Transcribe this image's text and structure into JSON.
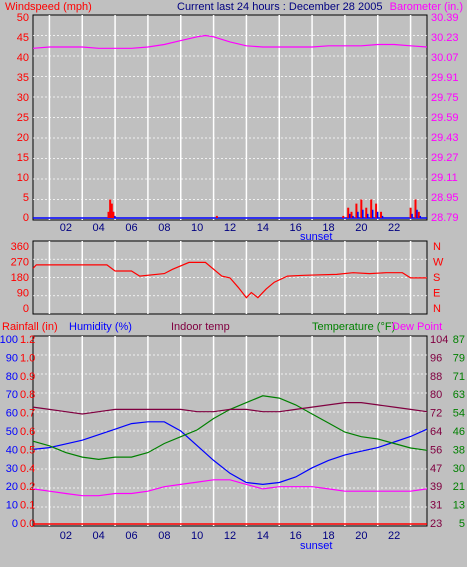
{
  "colors": {
    "panel_bg": "#c0c0c0",
    "red": "#ff0000",
    "blue": "#0000ff",
    "magenta": "#ff00ff",
    "green": "#008000",
    "maroon": "#800040",
    "navy": "#000080"
  },
  "chart_data": [
    {
      "type": "line",
      "title": "Current last 24 hours : December 28 2005",
      "left_axis_label": "Windspeed (mph)",
      "right_axis_label": "Barometer (in.)",
      "x_tick_labels": [
        "02",
        "04",
        "06",
        "08",
        "10",
        "12",
        "14",
        "16",
        "18",
        "20",
        "22"
      ],
      "x_extra_label": "sunset",
      "left_ticks": [
        "0",
        "5",
        "10",
        "15",
        "20",
        "25",
        "30",
        "35",
        "40",
        "45",
        "50"
      ],
      "right_ticks": [
        "28.79",
        "28.95",
        "29.11",
        "29.27",
        "29.43",
        "29.59",
        "29.75",
        "29.91",
        "30.07",
        "30.23",
        "30.39"
      ],
      "ylim_left": [
        0,
        50
      ],
      "ylim_right": [
        28.79,
        30.39
      ],
      "x_range_hours": [
        0,
        24
      ],
      "grid": true,
      "series": [
        {
          "name": "Barometer (in.)",
          "axis": "right",
          "x": [
            0,
            1,
            2,
            3,
            4,
            5,
            6,
            7,
            8,
            9,
            10,
            10.5,
            11,
            12,
            13,
            14,
            15,
            16,
            17,
            18,
            19,
            20,
            21,
            22,
            23,
            24
          ],
          "y": [
            30.13,
            30.14,
            30.14,
            30.14,
            30.13,
            30.13,
            30.13,
            30.14,
            30.16,
            30.19,
            30.22,
            30.23,
            30.22,
            30.18,
            30.15,
            30.14,
            30.14,
            30.14,
            30.14,
            30.15,
            30.15,
            30.15,
            30.16,
            30.16,
            30.15,
            30.14
          ]
        },
        {
          "name": "Windspeed (mph)",
          "axis": "left",
          "type": "bar",
          "x": [
            4.6,
            4.7,
            4.8,
            4.9,
            11.2,
            18.9,
            19.2,
            19.4,
            19.7,
            20.0,
            20.3,
            20.6,
            20.9,
            21.2,
            23.0,
            23.3,
            23.5
          ],
          "y": [
            2,
            5,
            4,
            2,
            1,
            1,
            3,
            2,
            4,
            5,
            3,
            5,
            4,
            2,
            3,
            5,
            2
          ]
        }
      ]
    },
    {
      "type": "line",
      "left_ticks": [
        "0",
        "90",
        "180",
        "270",
        "360"
      ],
      "right_ticks": [
        "N",
        "E",
        "S",
        "W",
        "N"
      ],
      "ylim": [
        0,
        360
      ],
      "x_range_hours": [
        0,
        24
      ],
      "grid": true,
      "series": [
        {
          "name": "Wind direction",
          "x": [
            0,
            0.2,
            4.5,
            5,
            6,
            6.5,
            8,
            8.5,
            9.5,
            10.5,
            11.5,
            12,
            12.5,
            13,
            13.3,
            13.7,
            14.2,
            14.7,
            15.5,
            16.5,
            18.5,
            19.5,
            20.5,
            21.5,
            22.5,
            23,
            24
          ],
          "y": [
            230,
            250,
            250,
            215,
            215,
            185,
            200,
            225,
            265,
            265,
            185,
            175,
            120,
            60,
            90,
            60,
            110,
            150,
            185,
            190,
            195,
            205,
            200,
            205,
            205,
            175,
            175
          ]
        }
      ]
    },
    {
      "type": "line",
      "left_axis_labels": [
        "Rainfall (in)",
        "Humidity (%)"
      ],
      "center_label": "Indoor temp",
      "right_axis_labels": [
        "Temperature (°F)",
        "Dew Point"
      ],
      "humidity_ticks": [
        "0",
        "10",
        "20",
        "30",
        "40",
        "50",
        "60",
        "70",
        "80",
        "90",
        "100"
      ],
      "rainfall_ticks": [
        "0.0",
        "0.1",
        "0.2",
        "0.4",
        "0.5",
        "0.6",
        "0.7",
        "0.8",
        "0.9",
        "1.0",
        "1.2"
      ],
      "temperature_ticks": [
        "23",
        "31",
        "39",
        "47",
        "56",
        "64",
        "72",
        "80",
        "88",
        "96",
        "104"
      ],
      "dewpoint_ticks": [
        "5",
        "13",
        "21",
        "30",
        "38",
        "46",
        "54",
        "63",
        "71",
        "79",
        "87"
      ],
      "x_tick_labels": [
        "02",
        "04",
        "06",
        "08",
        "10",
        "12",
        "14",
        "16",
        "18",
        "20",
        "22"
      ],
      "x_extra_label": "sunset",
      "ylim_humidity": [
        0,
        100
      ],
      "ylim_temperature": [
        23,
        104
      ],
      "x_range_hours": [
        0,
        24
      ],
      "grid": true,
      "series": [
        {
          "name": "Humidity (%)",
          "axis": "humidity",
          "x": [
            0,
            1,
            2,
            3,
            4,
            5,
            6,
            7,
            8,
            9,
            10,
            11,
            12,
            13,
            14,
            15,
            16,
            17,
            18,
            19,
            20,
            21,
            22,
            23,
            24
          ],
          "y": [
            40,
            41,
            43,
            45,
            48,
            51,
            54,
            55,
            55,
            50,
            42,
            34,
            27,
            22,
            21,
            22,
            25,
            30,
            34,
            37,
            39,
            41,
            44,
            47,
            51
          ]
        },
        {
          "name": "Temperature (°F)",
          "axis": "temperature",
          "x": [
            0,
            1,
            2,
            3,
            4,
            5,
            6,
            7,
            8,
            9,
            10,
            11,
            12,
            13,
            14,
            15,
            16,
            17,
            18,
            19,
            20,
            21,
            22,
            23,
            24
          ],
          "y": [
            59,
            57,
            54,
            52,
            51,
            52,
            52,
            54,
            58,
            61,
            64,
            69,
            73,
            76,
            79,
            78,
            75,
            71,
            67,
            63,
            61,
            60,
            58,
            56,
            55
          ]
        },
        {
          "name": "Indoor temp",
          "axis": "temperature",
          "x": [
            0,
            1,
            2,
            3,
            4,
            5,
            6,
            7,
            8,
            9,
            10,
            11,
            12,
            13,
            14,
            15,
            16,
            17,
            18,
            19,
            20,
            21,
            22,
            23,
            24
          ],
          "y": [
            74,
            73,
            72,
            71,
            72,
            73,
            73,
            73,
            73,
            73,
            72,
            72,
            73,
            73,
            72,
            72,
            73,
            74,
            75,
            76,
            76,
            75,
            74,
            73,
            72
          ]
        },
        {
          "name": "Dew Point",
          "axis": "temperature",
          "x": [
            0,
            1,
            2,
            3,
            4,
            5,
            6,
            7,
            8,
            9,
            10,
            11,
            12,
            13,
            14,
            15,
            16,
            17,
            18,
            19,
            20,
            21,
            22,
            23,
            24
          ],
          "y": [
            38,
            37,
            36,
            35,
            35,
            36,
            36,
            37,
            39,
            40,
            41,
            42,
            42,
            40,
            38,
            39,
            39,
            39,
            38,
            37,
            37,
            37,
            37,
            37,
            38
          ]
        }
      ]
    }
  ]
}
